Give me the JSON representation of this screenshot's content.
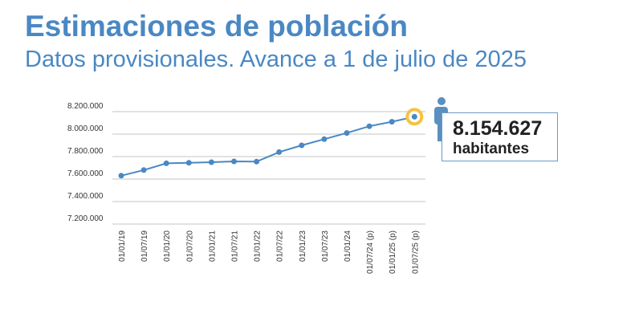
{
  "header": {
    "title": "Estimaciones de población",
    "subtitle": "Datos provisionales. Avance a 1 de julio de 2025"
  },
  "callout": {
    "value": "8.154.627",
    "label": "habitantes",
    "icon": "person-icon"
  },
  "colors": {
    "line": "#4a88c3",
    "highlight": "#f5c242",
    "text": "#4a88c3"
  },
  "chart_data": {
    "type": "line",
    "categories": [
      "01/01/19",
      "01/07/19",
      "01/01/20",
      "01/07/20",
      "01/01/21",
      "01/07/21",
      "01/01/22",
      "01/07/22",
      "01/01/23",
      "01/07/23",
      "01/01/24",
      "01/07/24 (p)",
      "01/01/25 (p)",
      "01/07/25 (p)"
    ],
    "values": [
      7630000,
      7680000,
      7740000,
      7745000,
      7750000,
      7757000,
      7755000,
      7840000,
      7900000,
      7955000,
      8010000,
      8070000,
      8110000,
      8154627
    ],
    "ylim": [
      7200000,
      8200000
    ],
    "yticks": [
      "7.200.000",
      "7.400.000",
      "7.600.000",
      "7.800.000",
      "8.000.000",
      "8.200.000"
    ],
    "ytick_values": [
      7200000,
      7400000,
      7600000,
      7800000,
      8000000,
      8200000
    ],
    "grid": true,
    "highlight_last": true
  }
}
